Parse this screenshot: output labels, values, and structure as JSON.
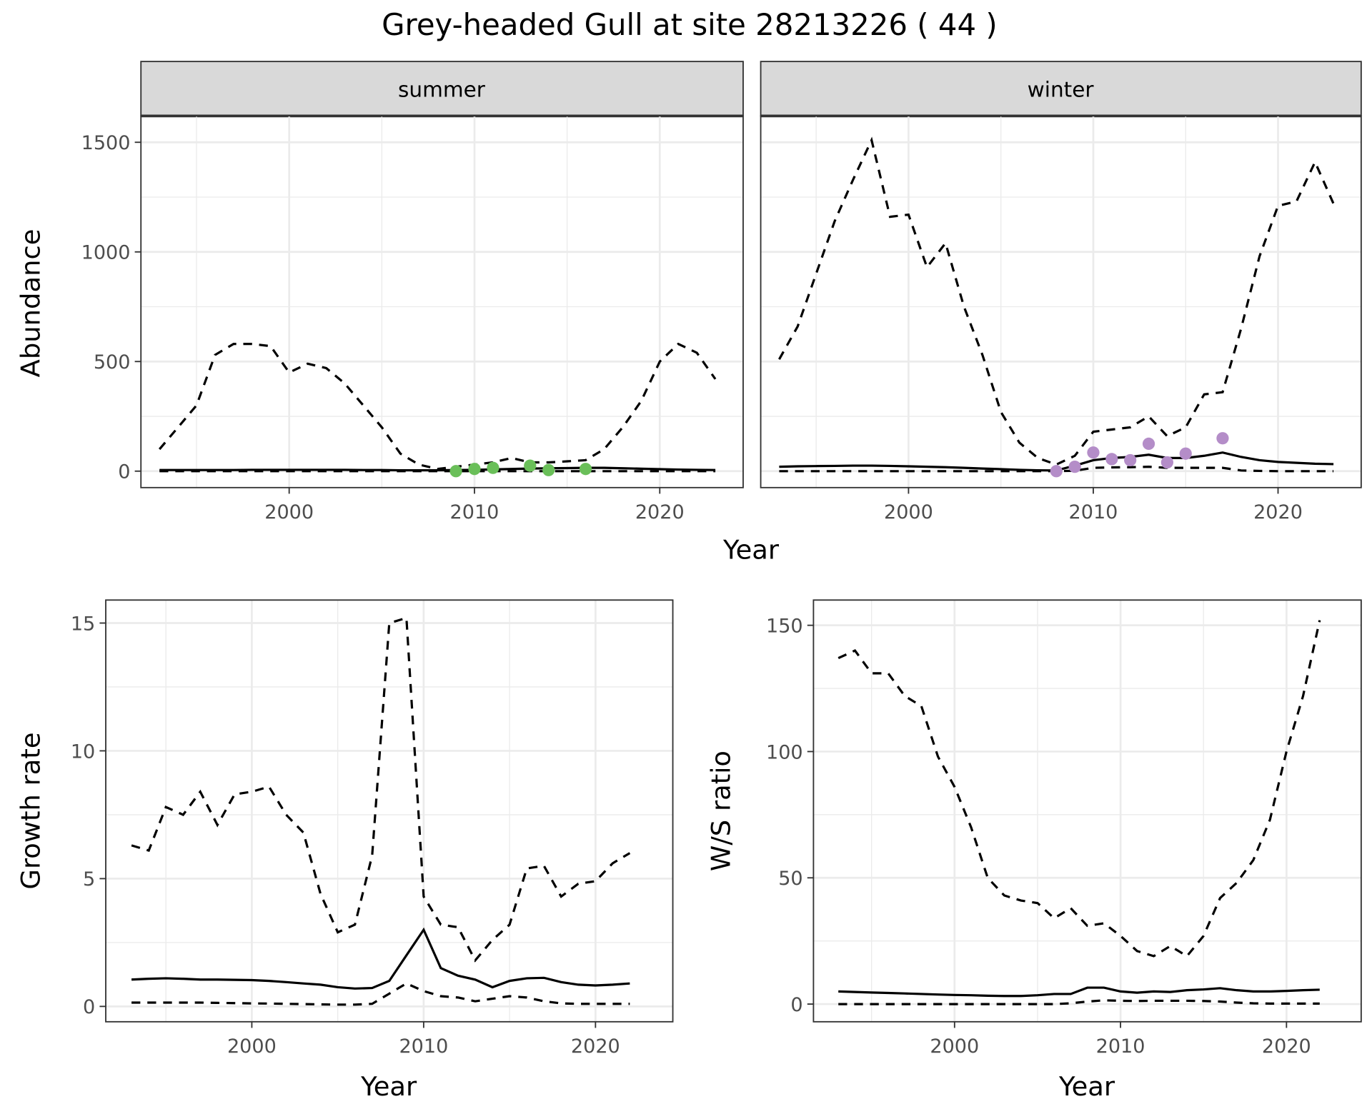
{
  "title": "Grey-headed Gull at site 28213226 ( 44 )",
  "colors": {
    "summer": "#6abf59",
    "winter": "#b48dc8",
    "line": "#000000",
    "grid": "#ebebeb",
    "strip": "#d9d9d9"
  },
  "chart_data": [
    {
      "type": "line",
      "facet": "summer",
      "xlabel": "Year",
      "ylabel": "Abundance",
      "xticks": [
        2000,
        2010,
        2020
      ],
      "yticks": [
        0,
        500,
        1000,
        1500
      ],
      "xlim": [
        1992,
        2024.5
      ],
      "ylim": [
        -75,
        1620
      ],
      "years": [
        1993,
        1994,
        1995,
        1996,
        1997,
        1998,
        1999,
        2000,
        2001,
        2002,
        2003,
        2004,
        2005,
        2006,
        2007,
        2008,
        2009,
        2010,
        2011,
        2012,
        2013,
        2014,
        2015,
        2016,
        2017,
        2018,
        2019,
        2020,
        2021,
        2022,
        2023
      ],
      "upper": [
        100,
        200,
        300,
        530,
        580,
        580,
        570,
        450,
        490,
        470,
        400,
        300,
        200,
        80,
        30,
        10,
        20,
        30,
        40,
        60,
        40,
        40,
        45,
        50,
        100,
        200,
        320,
        500,
        580,
        540,
        420
      ],
      "mean": [
        5,
        5,
        5,
        5,
        5,
        6,
        6,
        6,
        6,
        6,
        6,
        5,
        5,
        4,
        4,
        4,
        5,
        6,
        8,
        10,
        12,
        13,
        14,
        15,
        15,
        13,
        11,
        9,
        7,
        6,
        5
      ],
      "lower": [
        0,
        0,
        0,
        0,
        0,
        0,
        0,
        0,
        0,
        0,
        0,
        0,
        0,
        0,
        0,
        0,
        0,
        0,
        0,
        0,
        0,
        0,
        0,
        0,
        0,
        0,
        0,
        0,
        0,
        0,
        0
      ],
      "points": {
        "x": [
          2009,
          2010,
          2011,
          2013,
          2014,
          2016
        ],
        "y": [
          0,
          10,
          15,
          25,
          5,
          10
        ]
      }
    },
    {
      "type": "line",
      "facet": "winter",
      "xlabel": "Year",
      "ylabel": "Abundance",
      "xticks": [
        2000,
        2010,
        2020
      ],
      "yticks": [
        0,
        500,
        1000,
        1500
      ],
      "xlim": [
        1992,
        2024.5
      ],
      "ylim": [
        -75,
        1620
      ],
      "years": [
        1993,
        1994,
        1995,
        1996,
        1997,
        1998,
        1999,
        2000,
        2001,
        2002,
        2003,
        2004,
        2005,
        2006,
        2007,
        2008,
        2009,
        2010,
        2011,
        2012,
        2013,
        2014,
        2015,
        2016,
        2017,
        2018,
        2019,
        2020,
        2021,
        2022,
        2023
      ],
      "upper": [
        510,
        660,
        900,
        1140,
        1330,
        1510,
        1160,
        1170,
        930,
        1040,
        750,
        530,
        270,
        130,
        60,
        30,
        70,
        180,
        190,
        200,
        250,
        160,
        200,
        350,
        360,
        650,
        980,
        1210,
        1230,
        1410,
        1220
      ],
      "mean": [
        20,
        22,
        23,
        24,
        25,
        25,
        24,
        22,
        20,
        18,
        15,
        12,
        9,
        6,
        4,
        3,
        25,
        50,
        60,
        65,
        75,
        60,
        60,
        70,
        85,
        65,
        50,
        42,
        38,
        34,
        32
      ],
      "lower": [
        0,
        0,
        0,
        0,
        0,
        0,
        0,
        0,
        0,
        0,
        0,
        0,
        0,
        0,
        0,
        0,
        2,
        15,
        17,
        18,
        20,
        15,
        15,
        15,
        15,
        3,
        1,
        0,
        0,
        0,
        0
      ],
      "points": {
        "x": [
          2008,
          2009,
          2010,
          2011,
          2012,
          2013,
          2014,
          2015,
          2017
        ],
        "y": [
          0,
          20,
          85,
          55,
          50,
          125,
          40,
          80,
          150
        ]
      }
    },
    {
      "type": "line",
      "facet": "growth",
      "xlabel": "Year",
      "ylabel": "Growth rate",
      "xticks": [
        2000,
        2010,
        2020
      ],
      "yticks": [
        0,
        5,
        10,
        15
      ],
      "xlim": [
        1991.5,
        2024.5
      ],
      "ylim": [
        -0.6,
        15.9
      ],
      "years": [
        1993,
        1994,
        1995,
        1996,
        1997,
        1998,
        1999,
        2000,
        2001,
        2002,
        2003,
        2004,
        2005,
        2006,
        2007,
        2008,
        2009,
        2010,
        2011,
        2012,
        2013,
        2014,
        2015,
        2016,
        2017,
        2018,
        2019,
        2020,
        2021,
        2022
      ],
      "upper": [
        6.3,
        6.1,
        7.8,
        7.5,
        8.4,
        7.1,
        8.3,
        8.4,
        8.6,
        7.5,
        6.8,
        4.4,
        2.9,
        3.2,
        5.9,
        15.0,
        15.2,
        4.3,
        3.2,
        3.1,
        1.8,
        2.6,
        3.2,
        5.4,
        5.5,
        4.3,
        4.8,
        4.9,
        5.6,
        6.0
      ],
      "mean": [
        1.05,
        1.08,
        1.1,
        1.08,
        1.05,
        1.05,
        1.04,
        1.03,
        1.0,
        0.95,
        0.9,
        0.85,
        0.75,
        0.7,
        0.72,
        1.0,
        2.0,
        3.0,
        1.5,
        1.2,
        1.05,
        0.75,
        1.0,
        1.1,
        1.12,
        0.95,
        0.85,
        0.82,
        0.85,
        0.9
      ],
      "lower": [
        0.15,
        0.15,
        0.15,
        0.15,
        0.15,
        0.14,
        0.13,
        0.12,
        0.11,
        0.1,
        0.09,
        0.08,
        0.07,
        0.07,
        0.1,
        0.5,
        0.9,
        0.6,
        0.4,
        0.35,
        0.2,
        0.3,
        0.4,
        0.35,
        0.2,
        0.12,
        0.1,
        0.1,
        0.1,
        0.1
      ]
    },
    {
      "type": "line",
      "facet": "ratio",
      "xlabel": "Year",
      "ylabel": "W/S ratio",
      "xticks": [
        2000,
        2010,
        2020
      ],
      "yticks": [
        0,
        50,
        100,
        150
      ],
      "xlim": [
        1991.5,
        2024.5
      ],
      "ylim": [
        -7,
        160
      ],
      "years": [
        1993,
        1994,
        1995,
        1996,
        1997,
        1998,
        1999,
        2000,
        2001,
        2002,
        2003,
        2004,
        2005,
        2006,
        2007,
        2008,
        2009,
        2010,
        2011,
        2012,
        2013,
        2014,
        2015,
        2016,
        2017,
        2018,
        2019,
        2020,
        2021,
        2022
      ],
      "upper": [
        137,
        140,
        131,
        131,
        122,
        118,
        98,
        86,
        70,
        50,
        43,
        41,
        40,
        34,
        38,
        31,
        32,
        27,
        21,
        19,
        23,
        19,
        27,
        42,
        48,
        57,
        73,
        100,
        122,
        152
      ],
      "mean": [
        5,
        4.8,
        4.6,
        4.4,
        4.2,
        4,
        3.8,
        3.6,
        3.5,
        3.3,
        3.2,
        3.2,
        3.5,
        4,
        4,
        6.5,
        6.5,
        5,
        4.5,
        5,
        4.8,
        5.5,
        5.8,
        6.3,
        5.5,
        5,
        5,
        5.2,
        5.5,
        5.7
      ],
      "lower": [
        0,
        0,
        0,
        0,
        0,
        0,
        0,
        0,
        0,
        0,
        0,
        0,
        0,
        0,
        0.3,
        1,
        1.5,
        1.3,
        1.2,
        1.3,
        1.3,
        1.3,
        1.2,
        1,
        0.6,
        0.3,
        0.2,
        0.2,
        0.2,
        0.2
      ]
    }
  ]
}
